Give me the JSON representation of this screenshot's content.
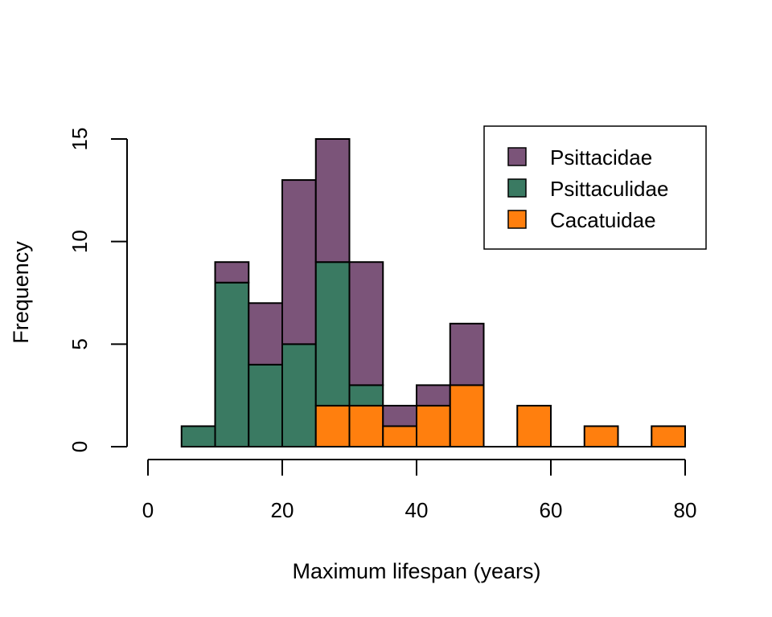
{
  "colors": {
    "Psittacidae": "#7B5479",
    "Psittaculidae": "#3A7A62",
    "Cacatuidae": "#FF7F0E"
  },
  "chart_data": {
    "type": "bar",
    "stacked": true,
    "title": "",
    "xlabel": "Maximum lifespan (years)",
    "ylabel": "Frequency",
    "xlim": [
      0,
      80
    ],
    "ylim": [
      0,
      15
    ],
    "x_ticks": [
      0,
      20,
      40,
      60,
      80
    ],
    "y_ticks": [
      0,
      5,
      10,
      15
    ],
    "grid": false,
    "legend_position": "top-right",
    "bin_edges": [
      5,
      10,
      15,
      20,
      25,
      30,
      35,
      40,
      45,
      50,
      55,
      60,
      65,
      70,
      75,
      80
    ],
    "series": [
      {
        "name": "Cacatuidae",
        "values": [
          0,
          0,
          0,
          0,
          2,
          2,
          1,
          2,
          3,
          0,
          2,
          0,
          1,
          0,
          1
        ]
      },
      {
        "name": "Psittaculidae",
        "values": [
          1,
          8,
          4,
          5,
          7,
          1,
          0,
          0,
          0,
          0,
          0,
          0,
          0,
          0,
          0
        ]
      },
      {
        "name": "Psittacidae",
        "values": [
          0,
          1,
          3,
          8,
          6,
          6,
          1,
          1,
          3,
          0,
          0,
          0,
          0,
          0,
          0
        ]
      }
    ],
    "legend_entries": [
      "Psittacidae",
      "Psittaculidae",
      "Cacatuidae"
    ]
  }
}
